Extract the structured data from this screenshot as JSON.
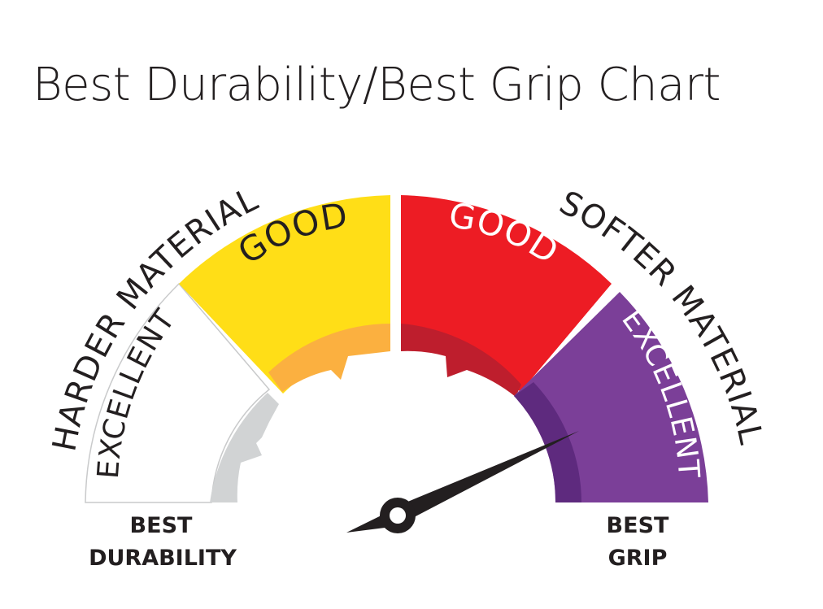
{
  "title": "Best Durability/Best Grip Chart",
  "left_material": "HARDER MATERIAL",
  "right_material": "SOFTER MATERIAL",
  "zones": [
    {
      "label": "EXCELLENT",
      "color": "#ffffff",
      "inner_color": "#d1d3d4"
    },
    {
      "label": "GOOD",
      "color": "#ffde17",
      "inner_color": "#fbb040"
    },
    {
      "label": "GOOD",
      "color": "#ed1c24",
      "inner_color": "#be1e2d"
    },
    {
      "label": "EXCELLENT",
      "color": "#7b3f98",
      "inner_color": "#5e2a7e"
    }
  ],
  "end_labels": {
    "left": [
      "BEST",
      "DURABILITY"
    ],
    "right": [
      "BEST",
      "GRIP"
    ]
  },
  "needle": {
    "color": "#231f20"
  }
}
